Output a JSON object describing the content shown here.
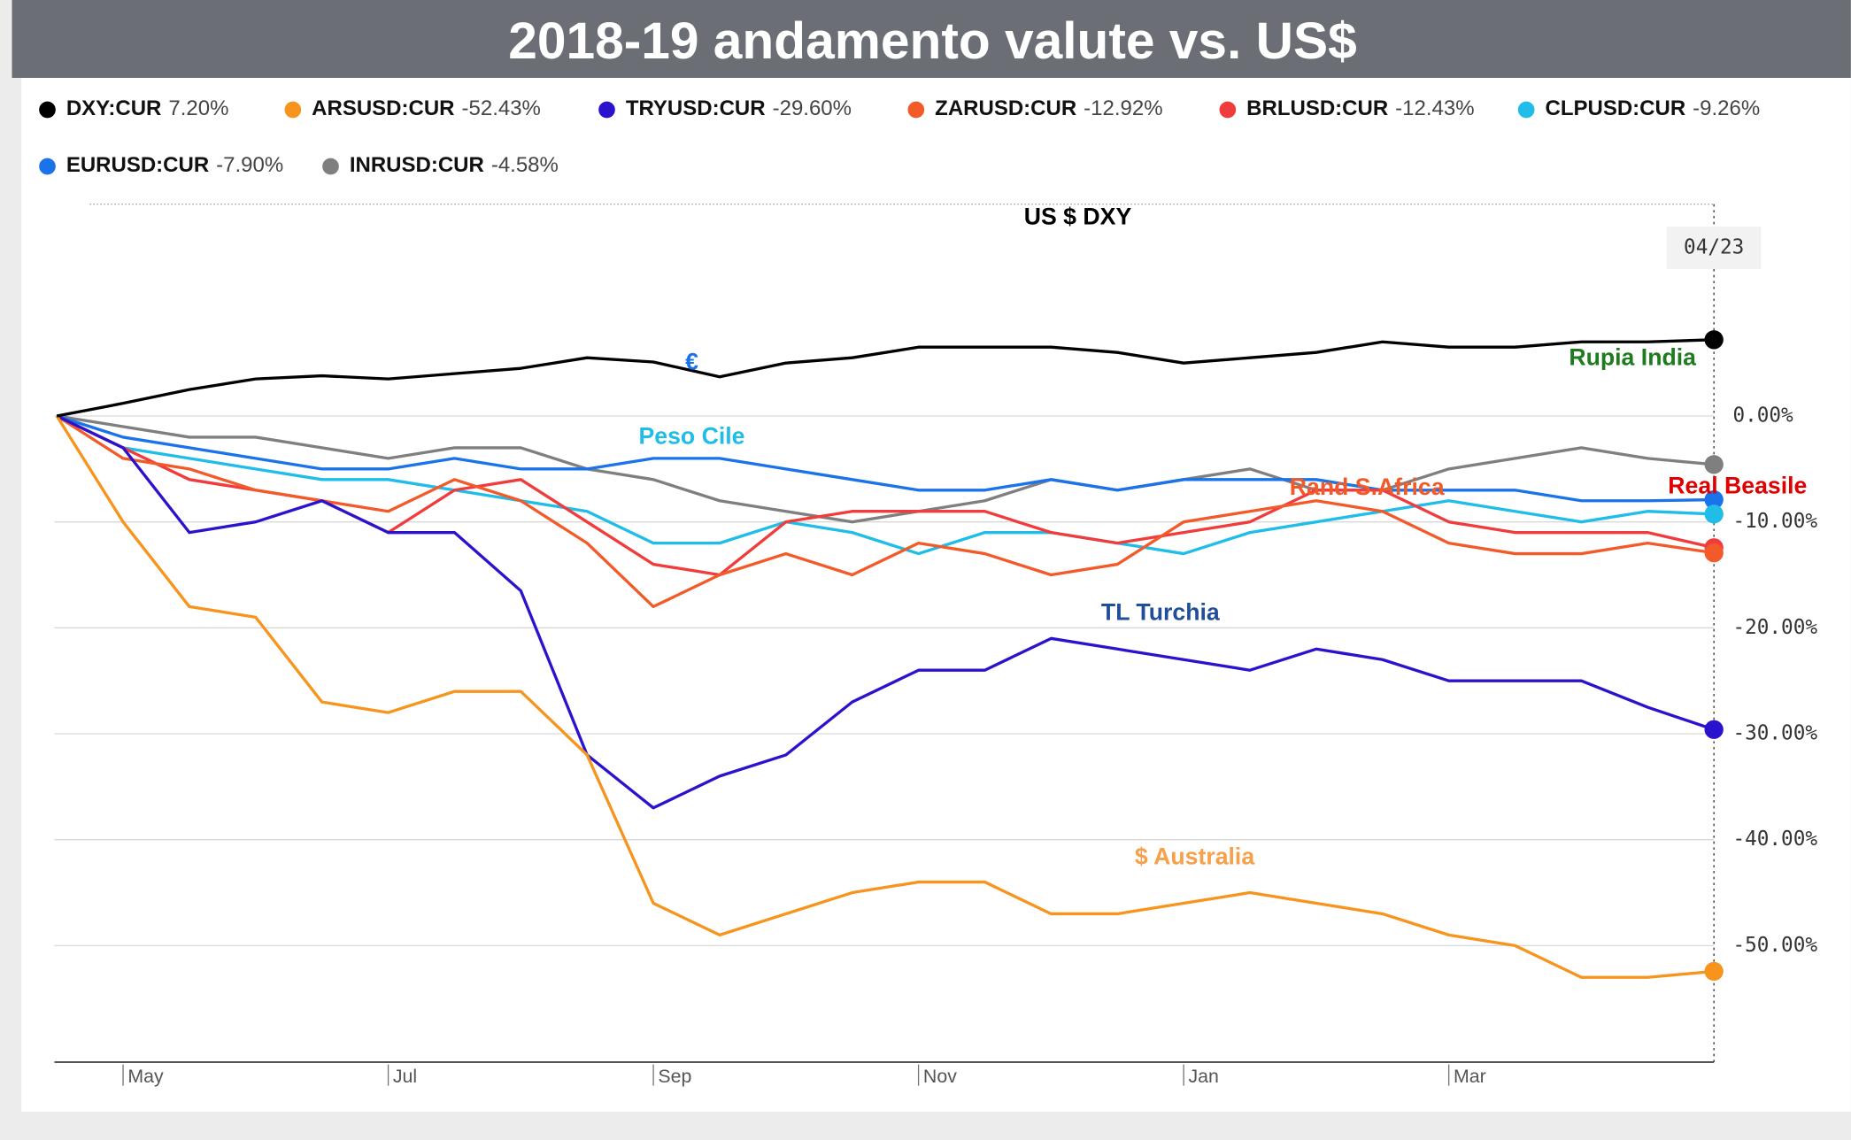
{
  "chart_data": {
    "type": "line",
    "title": "2018-19 andamento valute vs. US$",
    "categories": [
      null,
      "May",
      null,
      null,
      null,
      "Jul",
      null,
      null,
      null,
      "Sep",
      null,
      null,
      null,
      "Nov",
      null,
      null,
      null,
      "Jan",
      null,
      null,
      null,
      "Mar",
      null,
      null,
      null,
      null
    ],
    "series": [
      {
        "name": "DXY:CUR",
        "change_label": "7.20%",
        "color": "#000000",
        "values": [
          0,
          1.2,
          2.5,
          3.5,
          3.8,
          3.5,
          4,
          4.5,
          5.5,
          5.1,
          3.7,
          5,
          5.5,
          6.5,
          6.5,
          6.5,
          6,
          5,
          5.5,
          6,
          7,
          6.5,
          6.5,
          7,
          7,
          7.2
        ]
      },
      {
        "name": "ARSUSD:CUR",
        "change_label": "-52.43%",
        "color": "#f7941d",
        "values": [
          0,
          -10,
          -18,
          -19,
          -27,
          -28,
          -26,
          -26,
          -32,
          -46,
          -49,
          -47,
          -45,
          -44,
          -44,
          -47,
          -47,
          -46,
          -45,
          -46,
          -47,
          -49,
          -50,
          -53,
          -53,
          -52.43
        ]
      },
      {
        "name": "TRYUSD:CUR",
        "change_label": "-29.60%",
        "color": "#2b12cc",
        "values": [
          0,
          -3,
          -11,
          -10,
          -8,
          -11,
          -11,
          -16.5,
          -32,
          -37,
          -34,
          -32,
          -27,
          -24,
          -24,
          -21,
          -22,
          -23,
          -24,
          -22,
          -23,
          -25,
          -25,
          -25,
          -27.5,
          -29.6
        ]
      },
      {
        "name": "ZARUSD:CUR",
        "change_label": "-12.92%",
        "color": "#f35a2a",
        "values": [
          0,
          -4,
          -5,
          -7,
          -8,
          -9,
          -6,
          -8,
          -12,
          -18,
          -15,
          -13,
          -15,
          -12,
          -13,
          -15,
          -14,
          -10,
          -9,
          -8,
          -9,
          -12,
          -13,
          -13,
          -12,
          -12.92
        ]
      },
      {
        "name": "BRLUSD:CUR",
        "change_label": "-12.43%",
        "color": "#f03c3c",
        "values": [
          0,
          -3,
          -6,
          -7,
          -8,
          -11,
          -7,
          -6,
          -10,
          -14,
          -15,
          -10,
          -9,
          -9,
          -9,
          -11,
          -12,
          -11,
          -10,
          -7,
          -7,
          -10,
          -11,
          -11,
          -11,
          -12.43
        ]
      },
      {
        "name": "CLPUSD:CUR",
        "change_label": "-9.26%",
        "color": "#1fbde8",
        "values": [
          0,
          -3,
          -4,
          -5,
          -6,
          -6,
          -7,
          -8,
          -9,
          -12,
          -12,
          -10,
          -11,
          -13,
          -11,
          -11,
          -12,
          -13,
          -11,
          -10,
          -9,
          -8,
          -9,
          -10,
          -9,
          -9.26
        ]
      },
      {
        "name": "EURUSD:CUR",
        "change_label": "-7.90%",
        "color": "#1a73e8",
        "values": [
          0,
          -2,
          -3,
          -4,
          -5,
          -5,
          -4,
          -5,
          -5,
          -4,
          -4,
          -5,
          -6,
          -7,
          -7,
          -6,
          -7,
          -6,
          -6,
          -6,
          -7,
          -7,
          -7,
          -8,
          -8,
          -7.9
        ]
      },
      {
        "name": "INRUSD:CUR",
        "change_label": "-4.58%",
        "color": "#7f7f7f",
        "values": [
          0,
          -1,
          -2,
          -2,
          -3,
          -4,
          -3,
          -3,
          -5,
          -6,
          -8,
          -9,
          -10,
          -9,
          -8,
          -6,
          -7,
          -6,
          -5,
          -7,
          -7,
          -5,
          -4,
          -3,
          -4,
          -4.58
        ]
      }
    ],
    "ylim": [
      -61,
      20
    ],
    "yticks": [
      {
        "value": 0,
        "label": "0.00%"
      },
      {
        "value": -10,
        "label": "-10.00%"
      },
      {
        "value": -20,
        "label": "-20.00%"
      },
      {
        "value": -30,
        "label": "-30.00%"
      },
      {
        "value": -40,
        "label": "-40.00%"
      },
      {
        "value": -50,
        "label": "-50.00%"
      }
    ],
    "grid": true,
    "cursor_label": "04/23",
    "annotations": [
      {
        "text": "US $ DXY",
        "color": "#000000"
      },
      {
        "text": "€",
        "color": "#1a73e8"
      },
      {
        "text": "Rupia India",
        "color": "#1e7b1e"
      },
      {
        "text": "Peso Cile",
        "color": "#1fbde8"
      },
      {
        "text": "Rand S.Africa",
        "color": "#f35a2a"
      },
      {
        "text": "Real Beasile",
        "color": "#e00000"
      },
      {
        "text": "TL Turchia",
        "color": "#1f4e9a"
      },
      {
        "text": "$ Australia",
        "color": "#f7a04a"
      }
    ]
  }
}
